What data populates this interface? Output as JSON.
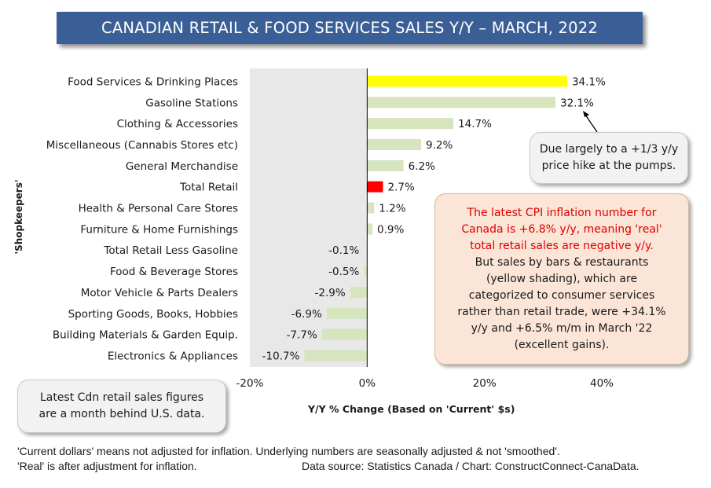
{
  "title": "CANADIAN RETAIL & FOOD SERVICES SALES Y/Y – MARCH, 2022",
  "colors": {
    "banner": "#3a5f96",
    "default_bar": "#d6e5be",
    "highlight_bar": "#ffff00",
    "total_bar": "#ff0000",
    "callout_red": "#e00000",
    "negative_shade": "#e6e6e6"
  },
  "chart_data": {
    "type": "bar",
    "orientation": "horizontal",
    "title": "CANADIAN RETAIL & FOOD SERVICES SALES Y/Y – MARCH, 2022",
    "xlabel": "Y/Y % Change (Based  on 'Current' $s)",
    "ylabel": "'Shopkeepers'",
    "xlim": [
      -20,
      40
    ],
    "xticks": [
      "-20%",
      "0%",
      "20%",
      "40%"
    ],
    "grid": false,
    "categories": [
      "Food Services & Drinking Places",
      "Gasoline Stations",
      "Clothing & Accessories",
      "Miscellaneous (Cannabis Stores etc)",
      "General Merchandise",
      "Total Retail",
      "Health & Personal Care Stores",
      "Furniture & Home Furnishings",
      "Total Retail Less Gasoline",
      "Food & Beverage Stores",
      "Motor Vehicle & Parts Dealers",
      "Sporting Goods, Books, Hobbies",
      "Building Materials & Garden Equip.",
      "Electronics & Appliances"
    ],
    "values": [
      34.1,
      32.1,
      14.7,
      9.2,
      6.2,
      2.7,
      1.2,
      0.9,
      -0.1,
      -0.5,
      -2.9,
      -6.9,
      -7.7,
      -10.7
    ],
    "data_labels": [
      "34.1%",
      "32.1%",
      "14.7%",
      "9.2%",
      "6.2%",
      "2.7%",
      "1.2%",
      "0.9%",
      "-0.1%",
      "-0.5%",
      "-2.9%",
      "-6.9%",
      "-7.7%",
      "-10.7%"
    ],
    "bar_colors": [
      "#ffff00",
      "#d6e5be",
      "#d6e5be",
      "#d6e5be",
      "#d6e5be",
      "#ff0000",
      "#d6e5be",
      "#d6e5be",
      "#d6e5be",
      "#d6e5be",
      "#d6e5be",
      "#d6e5be",
      "#d6e5be",
      "#d6e5be"
    ]
  },
  "callouts": {
    "pumps": {
      "line1": "Due largely to a +1/3 y/y",
      "line2": "price hike at the pumps."
    },
    "cpi": {
      "red_lines": [
        "The latest CPI inflation number for",
        "Canada is +6.8% y/y, meaning 'real'",
        "total retail sales are negative y/y."
      ],
      "black_lines": [
        "But sales by bars & restaurants",
        "(yellow shading), which are",
        "categorized to consumer services",
        "rather than retail trade, were +34.1%",
        "y/y and +6.5% m/m in March '22",
        "(excellent gains)."
      ]
    },
    "lag": {
      "line1": "Latest Cdn retail sales figures",
      "line2": "are a month behind U.S. data."
    }
  },
  "footnotes": {
    "line1": "'Current dollars' means not adjusted for inflation. Underlying numbers are seasonally adjusted & not 'smoothed'.",
    "line2": "'Real' is after adjustment for inflation.",
    "source": "Data source: Statistics Canada / Chart: ConstructConnect-CanaData."
  }
}
